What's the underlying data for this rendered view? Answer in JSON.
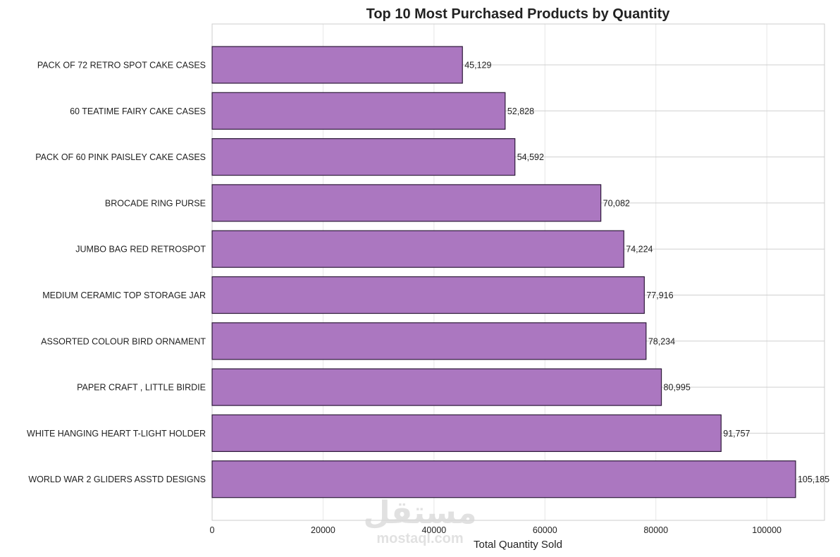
{
  "chart_data": {
    "type": "bar",
    "orientation": "horizontal",
    "title": "Top 10 Most Purchased Products by Quantity",
    "xlabel": "Total Quantity Sold",
    "ylabel": "",
    "xlim": [
      0,
      110398
    ],
    "xticks": [
      0,
      20000,
      40000,
      60000,
      80000,
      100000
    ],
    "xtick_labels": [
      "0",
      "20000",
      "40000",
      "60000",
      "80000",
      "100000"
    ],
    "grid": true,
    "bar_color": "#ab77c0",
    "bar_edge_color": "#2e1a3a",
    "categories": [
      "PACK OF 72 RETRO SPOT CAKE CASES",
      "60 TEATIME FAIRY CAKE CASES",
      "PACK OF 60 PINK PAISLEY CAKE CASES",
      "BROCADE RING PURSE ",
      "JUMBO BAG RED RETROSPOT",
      "MEDIUM CERAMIC TOP STORAGE JAR",
      "ASSORTED COLOUR BIRD ORNAMENT",
      "PAPER CRAFT , LITTLE BIRDIE",
      "WHITE HANGING HEART T-LIGHT HOLDER",
      "WORLD WAR 2 GLIDERS ASSTD DESIGNS"
    ],
    "values": [
      45129,
      52828,
      54592,
      70082,
      74224,
      77916,
      78234,
      80995,
      91757,
      105185
    ],
    "value_labels": [
      "45,129",
      "52,828",
      "54,592",
      "70,082",
      "74,224",
      "77,916",
      "78,234",
      "80,995",
      "91,757",
      "105,185"
    ]
  },
  "watermark": {
    "arabic_text": "مستقل",
    "latin_text": "mostaql.com"
  }
}
